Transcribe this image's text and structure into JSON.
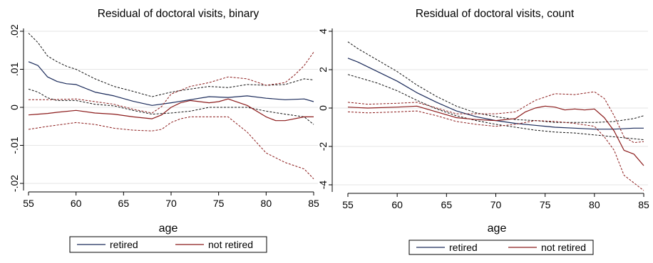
{
  "chart_data": [
    {
      "type": "line",
      "title": "Residual of doctoral visits, binary",
      "xlabel": "age",
      "ylabel": "",
      "xlim": [
        55,
        85
      ],
      "ylim": [
        -0.02,
        0.02
      ],
      "xticks": [
        55,
        60,
        65,
        70,
        75,
        80,
        85
      ],
      "xtick_labels": [
        "55",
        "60",
        "65",
        "70",
        "75",
        "80",
        "85"
      ],
      "yticks": [
        -0.02,
        -0.01,
        0,
        0.01,
        0.02
      ],
      "ytick_labels": [
        "-.02",
        "-.01",
        "0",
        ".01",
        ".02"
      ],
      "grid": true,
      "legend_position": "bottom",
      "series": [
        {
          "name": "retired",
          "role": "estimate",
          "color": "#1a2a5a",
          "dash": false,
          "x": [
            55,
            56,
            57,
            58,
            59,
            60,
            62,
            64,
            66,
            68,
            70,
            72,
            74,
            76,
            78,
            80,
            82,
            84,
            85
          ],
          "y": [
            0.012,
            0.011,
            0.008,
            0.0068,
            0.0062,
            0.006,
            0.004,
            0.003,
            0.0016,
            0.0005,
            0.0012,
            0.002,
            0.0028,
            0.0026,
            0.003,
            0.0024,
            0.002,
            0.0022,
            0.0015
          ]
        },
        {
          "name": "",
          "role": "upper",
          "color": "#111111",
          "dash": true,
          "x": [
            55,
            56,
            57,
            58,
            59,
            60,
            62,
            64,
            66,
            68,
            70,
            72,
            74,
            76,
            78,
            80,
            82,
            84,
            85
          ],
          "y": [
            0.0195,
            0.017,
            0.0135,
            0.012,
            0.0108,
            0.01,
            0.0075,
            0.0055,
            0.0042,
            0.0028,
            0.004,
            0.0048,
            0.0055,
            0.0052,
            0.006,
            0.0058,
            0.006,
            0.0075,
            0.0072
          ]
        },
        {
          "name": "",
          "role": "lower",
          "color": "#111111",
          "dash": true,
          "x": [
            55,
            56,
            57,
            58,
            59,
            60,
            62,
            64,
            66,
            68,
            70,
            72,
            74,
            76,
            78,
            80,
            82,
            84,
            85
          ],
          "y": [
            0.0048,
            0.004,
            0.0025,
            0.0018,
            0.0018,
            0.0018,
            0.0008,
            0.0004,
            -0.0008,
            -0.0018,
            -0.0015,
            -0.001,
            0.0,
            0.0,
            0.0,
            -0.001,
            -0.0018,
            -0.0025,
            -0.0045
          ]
        },
        {
          "name": "not retired",
          "role": "estimate",
          "color": "#8b1a1a",
          "dash": false,
          "x": [
            55,
            56,
            57,
            58,
            60,
            62,
            64,
            66,
            68,
            69,
            70,
            71,
            72,
            74,
            75,
            76,
            78,
            80,
            81,
            82,
            84,
            85
          ],
          "y": [
            -0.002,
            -0.0018,
            -0.0016,
            -0.0013,
            -0.0008,
            -0.0015,
            -0.0018,
            -0.0025,
            -0.003,
            -0.002,
            0.0,
            0.0012,
            0.0018,
            0.0012,
            0.0015,
            0.0022,
            0.0005,
            -0.0025,
            -0.0035,
            -0.0035,
            -0.0025,
            -0.0025
          ]
        },
        {
          "name": "",
          "role": "upper",
          "color": "#8b1a1a",
          "dash": true,
          "x": [
            55,
            57,
            60,
            62,
            64,
            66,
            68,
            69,
            70,
            72,
            74,
            76,
            78,
            80,
            82,
            83,
            84,
            85
          ],
          "y": [
            0.002,
            0.002,
            0.0022,
            0.0015,
            0.0008,
            -0.0005,
            -0.0015,
            0.0002,
            0.0035,
            0.0055,
            0.0065,
            0.008,
            0.0075,
            0.0058,
            0.0065,
            0.0085,
            0.011,
            0.0145
          ]
        },
        {
          "name": "",
          "role": "lower",
          "color": "#8b1a1a",
          "dash": true,
          "x": [
            55,
            57,
            60,
            62,
            64,
            66,
            68,
            69,
            70,
            71,
            72,
            74,
            76,
            78,
            80,
            82,
            84,
            85
          ],
          "y": [
            -0.0058,
            -0.005,
            -0.004,
            -0.0045,
            -0.0055,
            -0.006,
            -0.0062,
            -0.0058,
            -0.004,
            -0.003,
            -0.0025,
            -0.0025,
            -0.0025,
            -0.0065,
            -0.012,
            -0.0145,
            -0.0162,
            -0.0188
          ]
        }
      ]
    },
    {
      "type": "line",
      "title": "Residual of doctoral visits, count",
      "xlabel": "age",
      "ylabel": "",
      "xlim": [
        55,
        85
      ],
      "ylim": [
        -4,
        4
      ],
      "xticks": [
        55,
        60,
        65,
        70,
        75,
        80,
        85
      ],
      "xtick_labels": [
        "55",
        "60",
        "65",
        "70",
        "75",
        "80",
        "85"
      ],
      "yticks": [
        -4,
        -2,
        0,
        2,
        4
      ],
      "ytick_labels": [
        "-4",
        "-2",
        "0",
        "2",
        "4"
      ],
      "grid": true,
      "legend_position": "bottom",
      "series": [
        {
          "name": "retired",
          "role": "estimate",
          "color": "#1a2a5a",
          "dash": false,
          "x": [
            55,
            56,
            58,
            60,
            62,
            64,
            66,
            68,
            70,
            72,
            74,
            76,
            78,
            80,
            82,
            84,
            85
          ],
          "y": [
            2.6,
            2.4,
            1.9,
            1.4,
            0.8,
            0.3,
            -0.15,
            -0.45,
            -0.65,
            -0.8,
            -0.9,
            -1.0,
            -1.05,
            -1.1,
            -1.1,
            -1.05,
            -1.05
          ]
        },
        {
          "name": "",
          "role": "upper",
          "color": "#111111",
          "dash": true,
          "x": [
            55,
            56,
            58,
            60,
            62,
            64,
            66,
            68,
            70,
            72,
            74,
            76,
            78,
            80,
            82,
            84,
            85
          ],
          "y": [
            3.45,
            3.1,
            2.5,
            1.9,
            1.2,
            0.6,
            0.1,
            -0.25,
            -0.45,
            -0.6,
            -0.65,
            -0.75,
            -0.75,
            -0.75,
            -0.7,
            -0.55,
            -0.4
          ]
        },
        {
          "name": "",
          "role": "lower",
          "color": "#111111",
          "dash": true,
          "x": [
            55,
            56,
            58,
            60,
            62,
            64,
            66,
            68,
            70,
            72,
            74,
            76,
            78,
            80,
            82,
            84,
            85
          ],
          "y": [
            1.75,
            1.6,
            1.3,
            0.9,
            0.4,
            -0.05,
            -0.4,
            -0.65,
            -0.85,
            -1.0,
            -1.15,
            -1.25,
            -1.3,
            -1.4,
            -1.5,
            -1.6,
            -1.65
          ]
        },
        {
          "name": "not retired",
          "role": "estimate",
          "color": "#8b1a1a",
          "dash": false,
          "x": [
            55,
            57,
            60,
            62,
            64,
            66,
            68,
            70,
            72,
            73,
            74,
            75,
            76,
            77,
            78,
            79,
            80,
            81,
            82,
            83,
            84,
            85
          ],
          "y": [
            0.05,
            0.0,
            0.05,
            0.1,
            -0.2,
            -0.5,
            -0.6,
            -0.65,
            -0.55,
            -0.2,
            0.0,
            0.1,
            0.05,
            -0.1,
            -0.05,
            -0.1,
            -0.05,
            -0.5,
            -1.2,
            -2.2,
            -2.4,
            -3.0
          ]
        },
        {
          "name": "",
          "role": "upper",
          "color": "#8b1a1a",
          "dash": true,
          "x": [
            55,
            57,
            60,
            62,
            64,
            66,
            68,
            70,
            72,
            74,
            76,
            78,
            80,
            81,
            82,
            83,
            84,
            85
          ],
          "y": [
            0.3,
            0.2,
            0.25,
            0.3,
            0.0,
            -0.3,
            -0.3,
            -0.3,
            -0.2,
            0.4,
            0.75,
            0.7,
            0.85,
            0.5,
            -0.4,
            -1.5,
            -1.8,
            -1.75
          ]
        },
        {
          "name": "",
          "role": "lower",
          "color": "#8b1a1a",
          "dash": true,
          "x": [
            55,
            57,
            60,
            62,
            64,
            66,
            68,
            70,
            72,
            74,
            76,
            78,
            80,
            81,
            82,
            83,
            84,
            85
          ],
          "y": [
            -0.2,
            -0.25,
            -0.2,
            -0.15,
            -0.4,
            -0.7,
            -0.85,
            -0.95,
            -0.85,
            -0.65,
            -0.7,
            -0.8,
            -0.95,
            -1.5,
            -2.2,
            -3.5,
            -3.9,
            -4.3
          ]
        }
      ]
    }
  ]
}
